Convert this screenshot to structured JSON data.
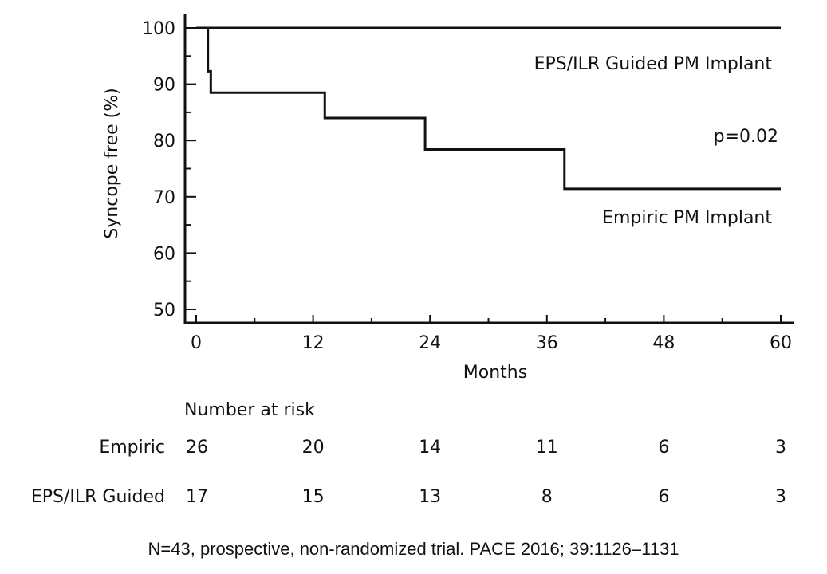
{
  "chart_data": {
    "type": "line",
    "step": true,
    "xlabel": "Months",
    "ylabel": "Syncope free (%)",
    "xlim": [
      0,
      60
    ],
    "ylim": [
      50,
      100
    ],
    "xticks": [
      0,
      12,
      24,
      36,
      48,
      60
    ],
    "yticks": [
      50,
      60,
      70,
      80,
      90,
      100
    ],
    "grid": false,
    "series": [
      {
        "name": "EPS/ILR Guided PM Implant",
        "x": [
          0,
          60
        ],
        "y": [
          100,
          100
        ]
      },
      {
        "name": "Empiric PM Implant",
        "x": [
          0,
          1.2,
          1.5,
          13.2,
          23.5,
          37.8,
          60
        ],
        "y": [
          100,
          92.3,
          88.5,
          84.0,
          78.4,
          71.4,
          71.4
        ]
      }
    ],
    "annotations": [
      {
        "text": "p=0.02"
      }
    ],
    "number_at_risk": {
      "title": "Number at risk",
      "rows": [
        {
          "label": "Empiric",
          "values": [
            "26",
            "20",
            "14",
            "11",
            "6",
            "3"
          ]
        },
        {
          "label": "EPS/ILR Guided",
          "values": [
            "17",
            "15",
            "13",
            "8",
            "6",
            "3"
          ]
        }
      ]
    }
  },
  "caption": "N=43, prospective, non-randomized trial. PACE 2016; 39:1126–1131"
}
